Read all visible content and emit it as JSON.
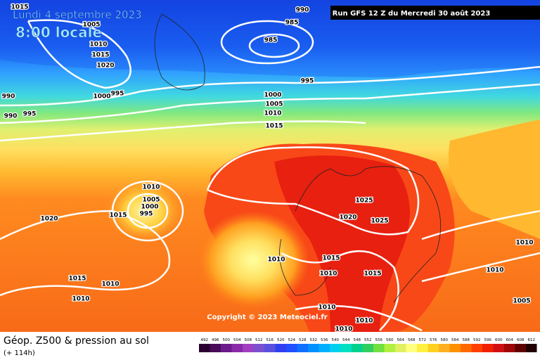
{
  "header": {
    "date": "Lundi 4 septembre 2023",
    "time": "8:00 locale",
    "run": "Run GFS 12 Z du Mercredi 30 août 2023"
  },
  "copyright": "Copyright © 2023 Meteociel.fr",
  "footer": {
    "title": "Géop. Z500 & pression au sol",
    "lead": "(+ 114h)"
  },
  "legend": {
    "labels": [
      492,
      496,
      500,
      504,
      508,
      512,
      516,
      520,
      524,
      528,
      532,
      536,
      540,
      544,
      548,
      552,
      556,
      560,
      564,
      568,
      572,
      576,
      580,
      584,
      588,
      592,
      596,
      600,
      604,
      608,
      612
    ]
  },
  "isobar_labels": [
    1015,
    1005,
    1010,
    1015,
    1020,
    1000,
    995,
    990,
    990,
    995,
    990,
    985,
    985,
    995,
    1000,
    1005,
    1010,
    1015,
    1010,
    1005,
    1000,
    995,
    1015,
    1020,
    1025,
    1020,
    1025,
    1010,
    1015,
    1010,
    1015,
    1010,
    1010,
    1015,
    1010,
    1010,
    1010,
    1010,
    1010,
    1005
  ]
}
